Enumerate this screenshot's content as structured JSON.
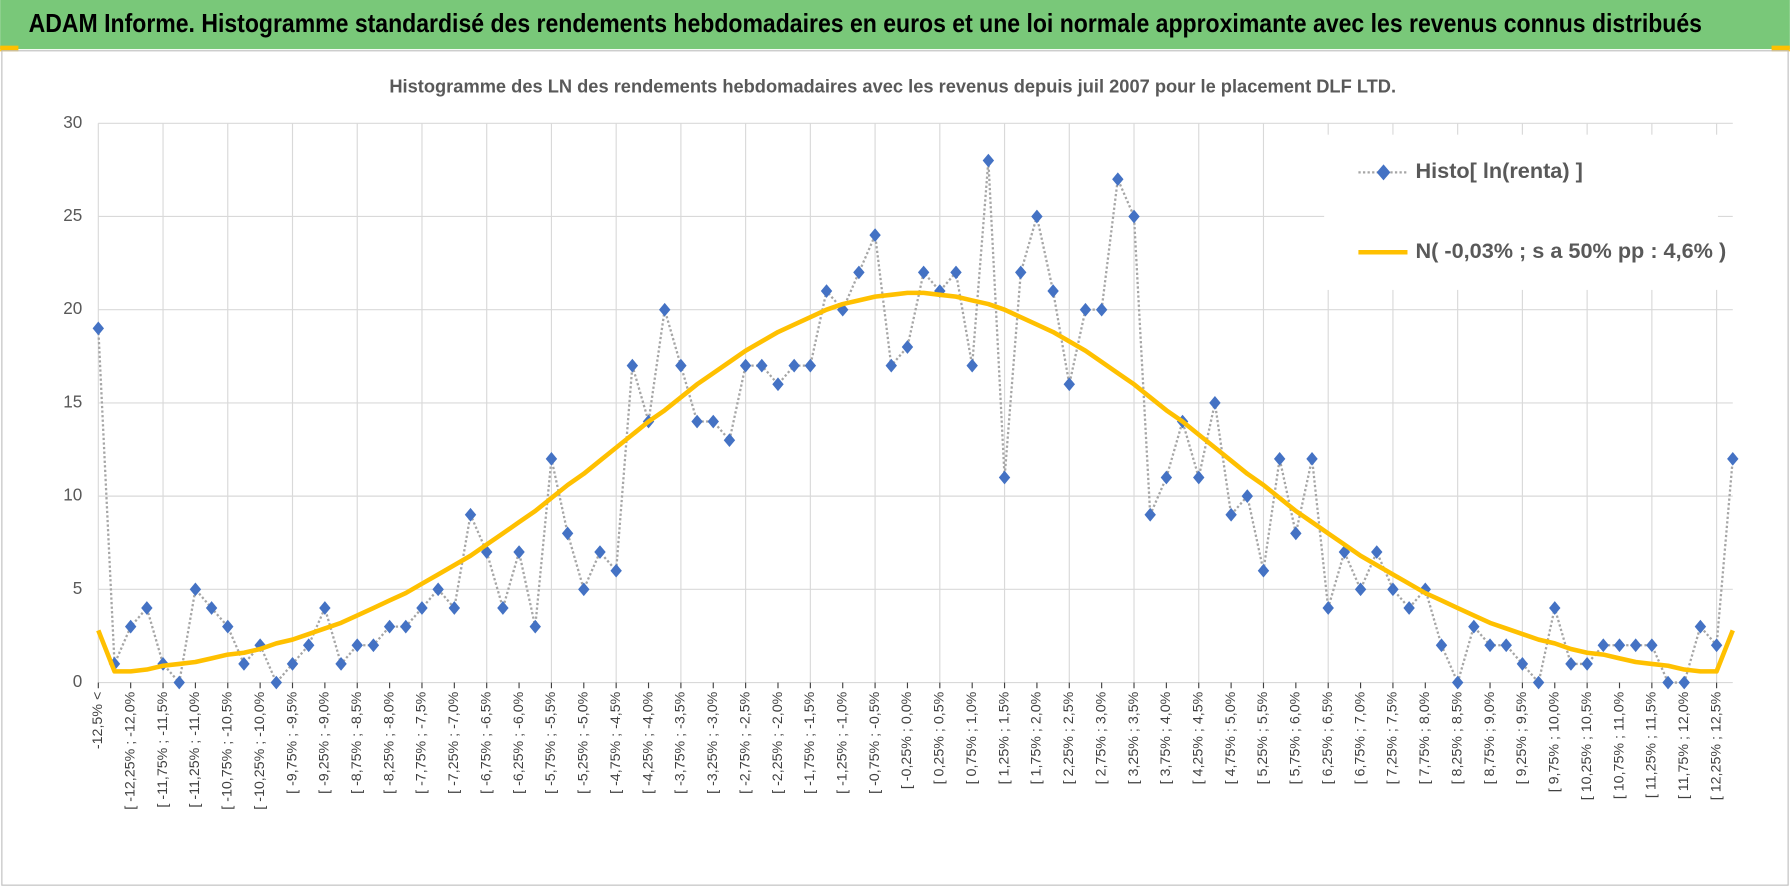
{
  "header": {
    "title": "ADAM Informe. Histogramme standardisé des rendements hebdomadaires en euros et une loi normale approximante avec les revenus connus distribués"
  },
  "chart_data": {
    "type": "line",
    "title": "Histogramme des LN des rendements hebdomadaires avec les revenus depuis juil 2007 pour le placement DLF LTD.",
    "categories": [
      "-12,5% <",
      null,
      "[ -12,25% ; -12,0%",
      null,
      "[ -11,75% ; -11,5%",
      null,
      "[ -11,25% ; -11,0%",
      null,
      "[ -10,75% ; -10,5%",
      null,
      "[ -10,25% ; -10,0%",
      null,
      "[ -9,75% ; -9,5%",
      null,
      "[ -9,25% ; -9,0%",
      null,
      "[ -8,75% ; -8,5%",
      null,
      "[ -8,25% ; -8,0%",
      null,
      "[ -7,75% ; -7,5%",
      null,
      "[ -7,25% ; -7,0%",
      null,
      "[ -6,75% ; -6,5%",
      null,
      "[ -6,25% ; -6,0%",
      null,
      "[ -5,75% ; -5,5%",
      null,
      "[ -5,25% ; -5,0%",
      null,
      "[ -4,75% ; -4,5%",
      null,
      "[ -4,25% ; -4,0%",
      null,
      "[ -3,75% ; -3,5%",
      null,
      "[ -3,25% ; -3,0%",
      null,
      "[ -2,75% ; -2,5%",
      null,
      "[ -2,25% ; -2,0%",
      null,
      "[ -1,75% ; -1,5%",
      null,
      "[ -1,25% ; -1,0%",
      null,
      "[ -0,75% ; -0,5%",
      null,
      "[ -0,25% ; 0,0%",
      null,
      "[ 0,25% ; 0,5%",
      null,
      "[ 0,75% ; 1,0%",
      null,
      "[ 1,25% ; 1,5%",
      null,
      "[ 1,75% ; 2,0%",
      null,
      "[ 2,25% ; 2,5%",
      null,
      "[ 2,75% ; 3,0%",
      null,
      "[ 3,25% ; 3,5%",
      null,
      "[ 3,75% ; 4,0%",
      null,
      "[ 4,25% ; 4,5%",
      null,
      "[ 4,75% ; 5,0%",
      null,
      "[ 5,25% ; 5,5%",
      null,
      "[ 5,75% ; 6,0%",
      null,
      "[ 6,25% ; 6,5%",
      null,
      "[ 6,75% ; 7,0%",
      null,
      "[ 7,25% ; 7,5%",
      null,
      "[ 7,75% ; 8,0%",
      null,
      "[ 8,25% ; 8,5%",
      null,
      "[ 8,75% ; 9,0%",
      null,
      "[ 9,25% ; 9,5%",
      null,
      "[ 9,75% ; 10,0%",
      null,
      "[ 10,25% ; 10,5%",
      null,
      "[ 10,75% ; 11,0%",
      null,
      "[ 11,25% ; 11,5%",
      null,
      "[ 11,75% ; 12,0%",
      null,
      "[ 12,25% ; 12,5%",
      null
    ],
    "series": [
      {
        "name": "Histo[ ln(renta) ]",
        "color": "#4472c4",
        "line_color": "#a6a6a6",
        "values": [
          19,
          1,
          3,
          4,
          1,
          0,
          5,
          4,
          3,
          1,
          2,
          0,
          1,
          2,
          4,
          1,
          2,
          2,
          3,
          3,
          4,
          5,
          4,
          9,
          7,
          4,
          7,
          3,
          12,
          8,
          5,
          7,
          6,
          17,
          14,
          20,
          17,
          14,
          14,
          13,
          17,
          17,
          16,
          17,
          17,
          21,
          20,
          22,
          24,
          17,
          18,
          22,
          21,
          22,
          17,
          28,
          11,
          22,
          25,
          21,
          16,
          20,
          20,
          27,
          25,
          9,
          11,
          14,
          11,
          15,
          9,
          10,
          6,
          12,
          8,
          12,
          4,
          7,
          5,
          7,
          5,
          4,
          5,
          2,
          0,
          3,
          2,
          2,
          1,
          0,
          4,
          1,
          1,
          2,
          2,
          2,
          2,
          0,
          0,
          3,
          2,
          12
        ]
      },
      {
        "name": "N( -0,03% ; s a 50% pp : 4,6% )",
        "color": "#ffc000",
        "values": [
          2.8,
          0.6,
          0.6,
          0.7,
          0.9,
          1.0,
          1.1,
          1.3,
          1.5,
          1.6,
          1.8,
          2.1,
          2.3,
          2.6,
          2.9,
          3.2,
          3.6,
          4.0,
          4.4,
          4.8,
          5.3,
          5.8,
          6.3,
          6.8,
          7.4,
          8.0,
          8.6,
          9.2,
          9.9,
          10.6,
          11.2,
          11.9,
          12.6,
          13.3,
          14.0,
          14.6,
          15.3,
          16.0,
          16.6,
          17.2,
          17.8,
          18.3,
          18.8,
          19.2,
          19.6,
          20.0,
          20.3,
          20.5,
          20.7,
          20.8,
          20.9,
          20.9,
          20.8,
          20.7,
          20.5,
          20.3,
          20.0,
          19.6,
          19.2,
          18.8,
          18.3,
          17.8,
          17.2,
          16.6,
          16.0,
          15.3,
          14.6,
          14.0,
          13.3,
          12.6,
          11.9,
          11.2,
          10.6,
          9.9,
          9.2,
          8.6,
          8.0,
          7.4,
          6.8,
          6.3,
          5.8,
          5.3,
          4.8,
          4.4,
          4.0,
          3.6,
          3.2,
          2.9,
          2.6,
          2.3,
          2.1,
          1.8,
          1.6,
          1.5,
          1.3,
          1.1,
          1.0,
          0.9,
          0.7,
          0.6,
          0.6,
          2.8
        ]
      }
    ],
    "ylim": [
      0,
      30
    ],
    "yticks": [
      0,
      5,
      10,
      15,
      20,
      25,
      30
    ],
    "grid": true,
    "legend": "top-right"
  }
}
